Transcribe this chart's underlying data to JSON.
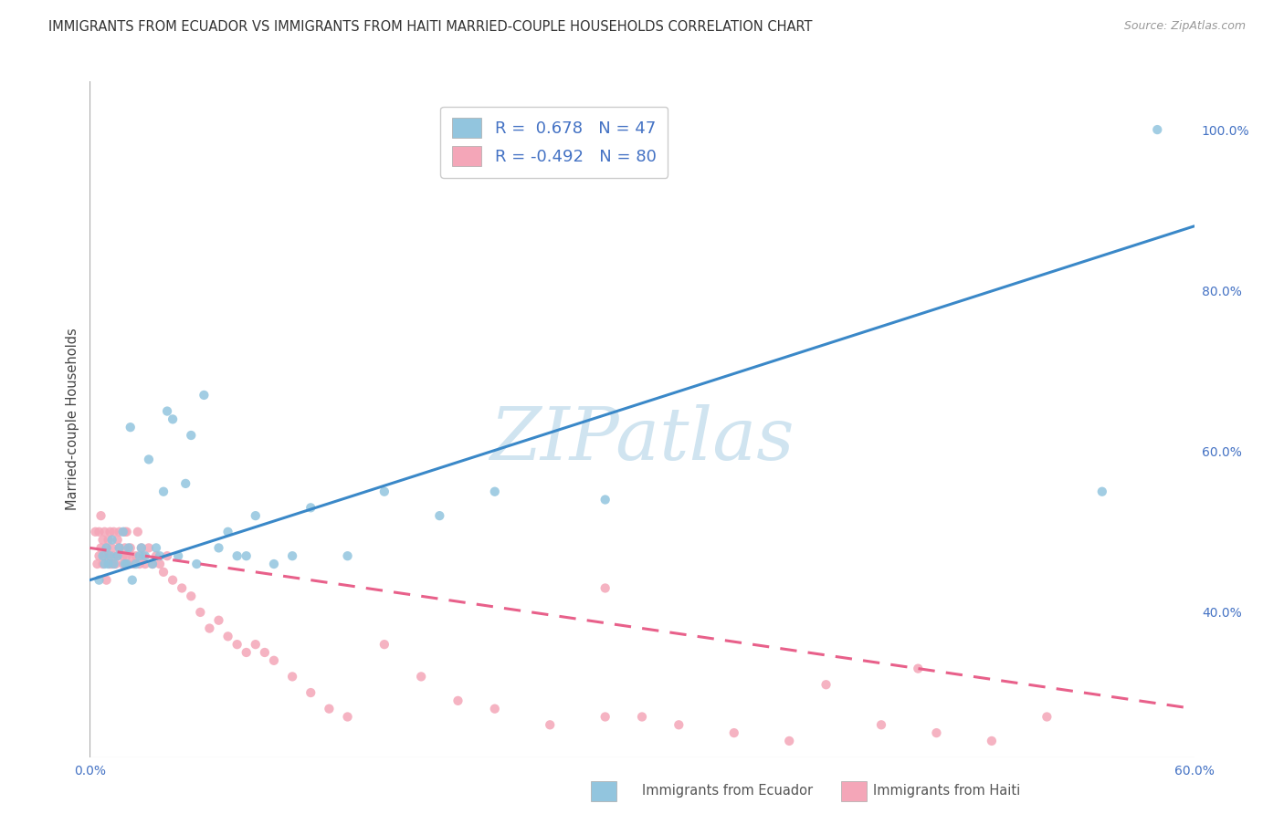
{
  "title": "IMMIGRANTS FROM ECUADOR VS IMMIGRANTS FROM HAITI MARRIED-COUPLE HOUSEHOLDS CORRELATION CHART",
  "source": "Source: ZipAtlas.com",
  "ylabel": "Married-couple Households",
  "right_yticks": [
    "100.0%",
    "80.0%",
    "60.0%",
    "40.0%"
  ],
  "right_ytick_vals": [
    1.0,
    0.8,
    0.6,
    0.4
  ],
  "ecuador_label": "Immigrants from Ecuador",
  "haiti_label": "Immigrants from Haiti",
  "legend_line1": "R =  0.678   N = 47",
  "legend_line2": "R = -0.492   N = 80",
  "ecuador_color": "#92c5de",
  "haiti_color": "#f4a6b8",
  "ecuador_line_color": "#3a88c8",
  "haiti_line_color": "#e8608a",
  "watermark_text": "ZIPatlas",
  "watermark_color": "#d0e4f0",
  "xlim": [
    0.0,
    0.6
  ],
  "ylim": [
    0.22,
    1.06
  ],
  "background_color": "#ffffff",
  "grid_color": "#d0d0d0",
  "title_fontsize": 10.5,
  "source_fontsize": 9,
  "tick_fontsize": 10,
  "legend_fontsize": 13,
  "ecuador_scatter_x": [
    0.005,
    0.007,
    0.008,
    0.009,
    0.01,
    0.011,
    0.012,
    0.013,
    0.015,
    0.016,
    0.018,
    0.019,
    0.02,
    0.021,
    0.022,
    0.023,
    0.025,
    0.027,
    0.028,
    0.03,
    0.032,
    0.034,
    0.036,
    0.038,
    0.04,
    0.042,
    0.045,
    0.048,
    0.052,
    0.055,
    0.058,
    0.062,
    0.07,
    0.075,
    0.08,
    0.085,
    0.09,
    0.1,
    0.11,
    0.12,
    0.14,
    0.16,
    0.19,
    0.22,
    0.28,
    0.55,
    0.58
  ],
  "ecuador_scatter_y": [
    0.44,
    0.47,
    0.46,
    0.48,
    0.46,
    0.47,
    0.49,
    0.46,
    0.47,
    0.48,
    0.5,
    0.46,
    0.46,
    0.48,
    0.63,
    0.44,
    0.46,
    0.47,
    0.48,
    0.47,
    0.59,
    0.46,
    0.48,
    0.47,
    0.55,
    0.65,
    0.64,
    0.47,
    0.56,
    0.62,
    0.46,
    0.67,
    0.48,
    0.5,
    0.47,
    0.47,
    0.52,
    0.46,
    0.47,
    0.53,
    0.47,
    0.55,
    0.52,
    0.55,
    0.54,
    0.55,
    1.0
  ],
  "haiti_scatter_x": [
    0.003,
    0.004,
    0.005,
    0.005,
    0.006,
    0.006,
    0.007,
    0.007,
    0.008,
    0.008,
    0.009,
    0.009,
    0.01,
    0.01,
    0.011,
    0.011,
    0.012,
    0.012,
    0.013,
    0.013,
    0.014,
    0.015,
    0.015,
    0.016,
    0.016,
    0.018,
    0.018,
    0.019,
    0.019,
    0.02,
    0.02,
    0.021,
    0.022,
    0.023,
    0.024,
    0.025,
    0.026,
    0.027,
    0.028,
    0.029,
    0.03,
    0.032,
    0.034,
    0.036,
    0.038,
    0.04,
    0.042,
    0.045,
    0.05,
    0.055,
    0.06,
    0.065,
    0.07,
    0.075,
    0.08,
    0.085,
    0.09,
    0.095,
    0.1,
    0.11,
    0.12,
    0.13,
    0.14,
    0.16,
    0.18,
    0.2,
    0.22,
    0.25,
    0.28,
    0.3,
    0.32,
    0.35,
    0.38,
    0.4,
    0.43,
    0.46,
    0.49,
    0.52,
    0.28,
    0.45
  ],
  "haiti_scatter_y": [
    0.5,
    0.46,
    0.47,
    0.5,
    0.48,
    0.52,
    0.46,
    0.49,
    0.47,
    0.5,
    0.48,
    0.44,
    0.47,
    0.49,
    0.46,
    0.5,
    0.48,
    0.46,
    0.47,
    0.5,
    0.46,
    0.49,
    0.47,
    0.48,
    0.5,
    0.47,
    0.46,
    0.48,
    0.5,
    0.47,
    0.5,
    0.46,
    0.48,
    0.47,
    0.46,
    0.47,
    0.5,
    0.46,
    0.48,
    0.47,
    0.46,
    0.48,
    0.46,
    0.47,
    0.46,
    0.45,
    0.47,
    0.44,
    0.43,
    0.42,
    0.4,
    0.38,
    0.39,
    0.37,
    0.36,
    0.35,
    0.36,
    0.35,
    0.34,
    0.32,
    0.3,
    0.28,
    0.27,
    0.36,
    0.32,
    0.29,
    0.28,
    0.26,
    0.27,
    0.27,
    0.26,
    0.25,
    0.24,
    0.31,
    0.26,
    0.25,
    0.24,
    0.27,
    0.43,
    0.33
  ],
  "ec_line_x0": 0.0,
  "ec_line_x1": 0.6,
  "ec_line_y0": 0.44,
  "ec_line_y1": 0.88,
  "ha_line_x0": 0.0,
  "ha_line_x1": 0.6,
  "ha_line_y0": 0.48,
  "ha_line_y1": 0.28
}
